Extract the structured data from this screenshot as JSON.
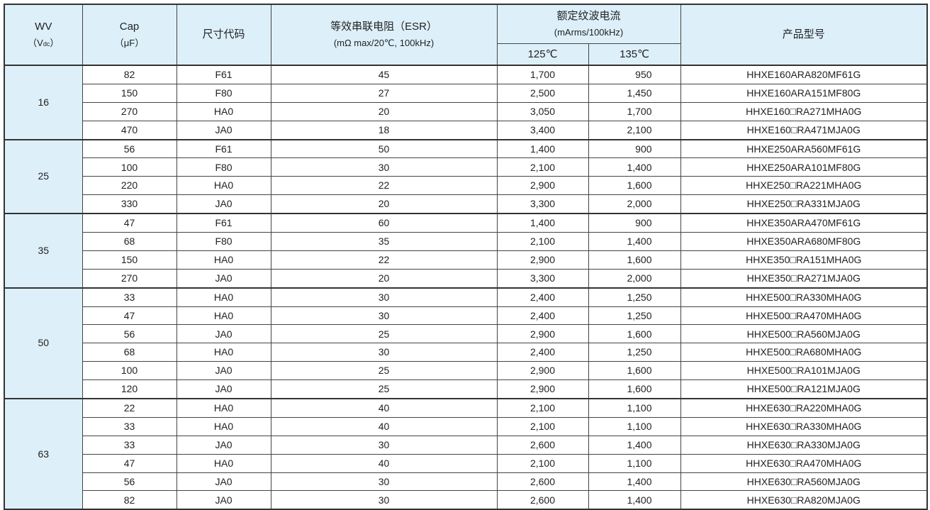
{
  "header": {
    "wv": "WV",
    "wv_unit_pre": "（V",
    "wv_unit_sub": "dc",
    "wv_unit_post": "）",
    "cap": "Cap",
    "cap_unit": "（μF）",
    "size_code": "尺寸代码",
    "esr": "等效串联电阻（ESR）",
    "esr_unit": "(mΩ max/20℃, 100kHz)",
    "ripple": "额定纹波电流",
    "ripple_unit": "(mArms/100kHz)",
    "t125": "125℃",
    "t135": "135℃",
    "part_no": "产品型号"
  },
  "groups": [
    {
      "wv": "16",
      "rows": [
        [
          "82",
          "F61",
          "45",
          "1,700",
          "950",
          "HHXE160ARA820MF61G"
        ],
        [
          "150",
          "F80",
          "27",
          "2,500",
          "1,450",
          "HHXE160ARA151MF80G"
        ],
        [
          "270",
          "HA0",
          "20",
          "3,050",
          "1,700",
          "HHXE160□RA271MHA0G"
        ],
        [
          "470",
          "JA0",
          "18",
          "3,400",
          "2,100",
          "HHXE160□RA471MJA0G"
        ]
      ]
    },
    {
      "wv": "25",
      "rows": [
        [
          "56",
          "F61",
          "50",
          "1,400",
          "900",
          "HHXE250ARA560MF61G"
        ],
        [
          "100",
          "F80",
          "30",
          "2,100",
          "1,400",
          "HHXE250ARA101MF80G"
        ],
        [
          "220",
          "HA0",
          "22",
          "2,900",
          "1,600",
          "HHXE250□RA221MHA0G"
        ],
        [
          "330",
          "JA0",
          "20",
          "3,300",
          "2,000",
          "HHXE250□RA331MJA0G"
        ]
      ]
    },
    {
      "wv": "35",
      "rows": [
        [
          "47",
          "F61",
          "60",
          "1,400",
          "900",
          "HHXE350ARA470MF61G"
        ],
        [
          "68",
          "F80",
          "35",
          "2,100",
          "1,400",
          "HHXE350ARA680MF80G"
        ],
        [
          "150",
          "HA0",
          "22",
          "2,900",
          "1,600",
          "HHXE350□RA151MHA0G"
        ],
        [
          "270",
          "JA0",
          "20",
          "3,300",
          "2,000",
          "HHXE350□RA271MJA0G"
        ]
      ]
    },
    {
      "wv": "50",
      "rows": [
        [
          "33",
          "HA0",
          "30",
          "2,400",
          "1,250",
          "HHXE500□RA330MHA0G"
        ],
        [
          "47",
          "HA0",
          "30",
          "2,400",
          "1,250",
          "HHXE500□RA470MHA0G"
        ],
        [
          "56",
          "JA0",
          "25",
          "2,900",
          "1,600",
          "HHXE500□RA560MJA0G"
        ],
        [
          "68",
          "HA0",
          "30",
          "2,400",
          "1,250",
          "HHXE500□RA680MHA0G"
        ],
        [
          "100",
          "JA0",
          "25",
          "2,900",
          "1,600",
          "HHXE500□RA101MJA0G"
        ],
        [
          "120",
          "JA0",
          "25",
          "2,900",
          "1,600",
          "HHXE500□RA121MJA0G"
        ]
      ]
    },
    {
      "wv": "63",
      "rows": [
        [
          "22",
          "HA0",
          "40",
          "2,100",
          "1,100",
          "HHXE630□RA220MHA0G"
        ],
        [
          "33",
          "HA0",
          "40",
          "2,100",
          "1,100",
          "HHXE630□RA330MHA0G"
        ],
        [
          "33",
          "JA0",
          "30",
          "2,600",
          "1,400",
          "HHXE630□RA330MJA0G"
        ],
        [
          "47",
          "HA0",
          "40",
          "2,100",
          "1,100",
          "HHXE630□RA470MHA0G"
        ],
        [
          "56",
          "JA0",
          "30",
          "2,600",
          "1,400",
          "HHXE630□RA560MJA0G"
        ],
        [
          "82",
          "JA0",
          "30",
          "2,600",
          "1,400",
          "HHXE630□RA820MJA0G"
        ]
      ]
    }
  ]
}
